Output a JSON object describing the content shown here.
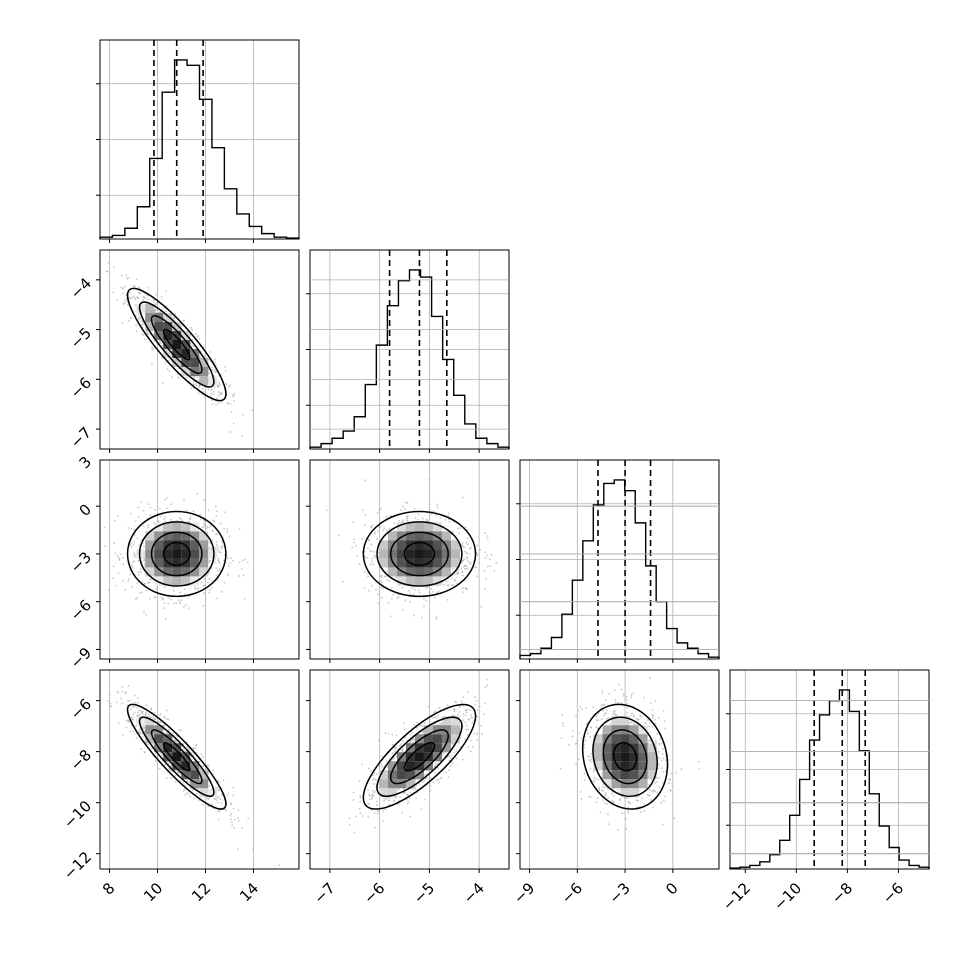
{
  "chart_data": {
    "type": "corner",
    "title": "",
    "parameters": [
      {
        "range": [
          7.6,
          15.9
        ],
        "ticks": [
          8,
          10,
          12,
          14
        ],
        "tick_labels": [
          "8",
          "10",
          "12",
          "14"
        ],
        "quantiles": [
          9.85,
          10.8,
          11.9
        ],
        "hist": [
          0.01,
          0.02,
          0.06,
          0.18,
          0.45,
          0.82,
          1.0,
          0.97,
          0.78,
          0.51,
          0.28,
          0.14,
          0.07,
          0.03,
          0.01,
          0.005
        ]
      },
      {
        "range": [
          -7.4,
          -3.4
        ],
        "ticks": [
          -7,
          -6,
          -5,
          -4
        ],
        "tick_labels": [
          "−7",
          "−6",
          "−5",
          "−4"
        ],
        "quantiles": [
          -5.8,
          -5.2,
          -4.65
        ],
        "hist": [
          0.01,
          0.03,
          0.06,
          0.1,
          0.18,
          0.36,
          0.58,
          0.8,
          0.94,
          1.0,
          0.96,
          0.74,
          0.5,
          0.3,
          0.14,
          0.06,
          0.03,
          0.01
        ]
      },
      {
        "range": [
          -9.6,
          2.9
        ],
        "ticks": [
          -9,
          -6,
          -3,
          0,
          3
        ],
        "tick_labels": [
          "−9",
          "−6",
          "−3",
          "0",
          "3"
        ],
        "quantiles": [
          -4.7,
          -3.0,
          -1.4
        ],
        "hist": [
          0.02,
          0.03,
          0.06,
          0.12,
          0.25,
          0.44,
          0.66,
          0.86,
          0.98,
          1.0,
          0.94,
          0.76,
          0.52,
          0.32,
          0.17,
          0.09,
          0.06,
          0.03,
          0.01
        ]
      },
      {
        "range": [
          -12.6,
          -4.8
        ],
        "ticks": [
          -12,
          -10,
          -8,
          -6
        ],
        "tick_labels": [
          "−12",
          "−10",
          "−8",
          "−6"
        ],
        "quantiles": [
          -9.3,
          -8.2,
          -7.3
        ],
        "hist": [
          0.005,
          0.01,
          0.02,
          0.04,
          0.08,
          0.16,
          0.3,
          0.5,
          0.72,
          0.86,
          0.94,
          1.0,
          0.88,
          0.66,
          0.42,
          0.24,
          0.12,
          0.05,
          0.02,
          0.01
        ]
      }
    ],
    "pairs": [
      {
        "x": 0,
        "y": 1,
        "mean": [
          10.8,
          -5.3
        ],
        "sd": [
          1.0,
          0.55
        ],
        "corr": -0.88,
        "y_ticks": [
          -7,
          -6,
          -5,
          -4
        ],
        "y_tick_labels": [
          "−7",
          "−6",
          "−5",
          "−4"
        ]
      },
      {
        "x": 0,
        "y": 2,
        "mean": [
          10.8,
          -3.0
        ],
        "sd": [
          1.0,
          1.3
        ],
        "corr": 0.0,
        "y_ticks": [
          -9,
          -6,
          -3,
          0,
          3
        ],
        "y_tick_labels": [
          "−9",
          "−6",
          "−3",
          "0",
          "3"
        ]
      },
      {
        "x": 1,
        "y": 2,
        "mean": [
          -5.2,
          -3.0
        ],
        "sd": [
          0.55,
          1.3
        ],
        "corr": 0.0
      },
      {
        "x": 0,
        "y": 3,
        "mean": [
          10.8,
          -8.2
        ],
        "sd": [
          1.0,
          1.0
        ],
        "corr": -0.9,
        "y_ticks": [
          -12,
          -10,
          -8,
          -6
        ],
        "y_tick_labels": [
          "−12",
          "−10",
          "−8",
          "−6"
        ]
      },
      {
        "x": 1,
        "y": 3,
        "mean": [
          -5.2,
          -8.2
        ],
        "sd": [
          0.55,
          1.0
        ],
        "corr": 0.78
      },
      {
        "x": 2,
        "y": 3,
        "mean": [
          -3.0,
          -8.2
        ],
        "sd": [
          1.3,
          1.0
        ],
        "corr": -0.15
      }
    ],
    "grid": true,
    "line_color": "#000000",
    "sample_color": "#9a9a9a",
    "grid_color": "#b0b0b0"
  }
}
